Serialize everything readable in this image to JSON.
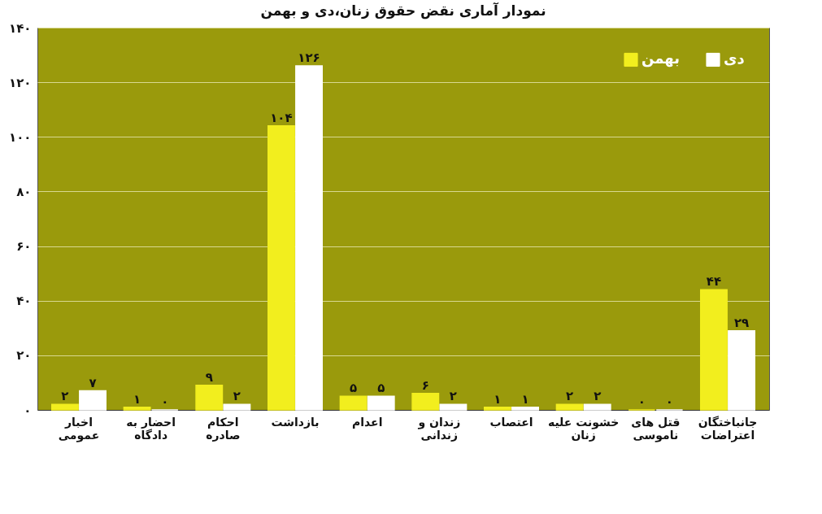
{
  "chart_data": {
    "type": "bar",
    "title": "نمودار آماری نقض حقوق زنان،دی و بهمن",
    "categories": [
      "اخبار عمومی",
      "احضار به دادگاه",
      "احکام صادره",
      "بازداشت",
      "اعدام",
      "زندان و زندانی",
      "اعتصاب",
      "خشونت علیه زنان",
      "قتل های ناموسی",
      "جانباختگان اعتراضات"
    ],
    "series": [
      {
        "name": "بهمن",
        "color": "#f2ee1e",
        "values": [
          2,
          1,
          9,
          104,
          5,
          6,
          1,
          2,
          0,
          44
        ],
        "value_labels": [
          "۲",
          "۱",
          "۹",
          "۱۰۴",
          "۵",
          "۶",
          "۱",
          "۲",
          "۰",
          "۴۴"
        ]
      },
      {
        "name": "دی",
        "color": "#ffffff",
        "values": [
          7,
          0,
          2,
          126,
          5,
          2,
          1,
          2,
          0,
          29
        ],
        "value_labels": [
          "۷",
          "۰",
          "۲",
          "۱۲۶",
          "۵",
          "۲",
          "۱",
          "۲",
          "۰",
          "۲۹"
        ]
      }
    ],
    "ylim": [
      0,
      140
    ],
    "yticks": [
      {
        "value": 0,
        "label": "۰"
      },
      {
        "value": 20,
        "label": "۲۰"
      },
      {
        "value": 40,
        "label": "۴۰"
      },
      {
        "value": 60,
        "label": "۶۰"
      },
      {
        "value": 80,
        "label": "۸۰"
      },
      {
        "value": 100,
        "label": "۱۰۰"
      },
      {
        "value": 120,
        "label": "۱۲۰"
      },
      {
        "value": 140,
        "label": "۱۴۰"
      }
    ],
    "grid": "y",
    "legend": "top right"
  }
}
